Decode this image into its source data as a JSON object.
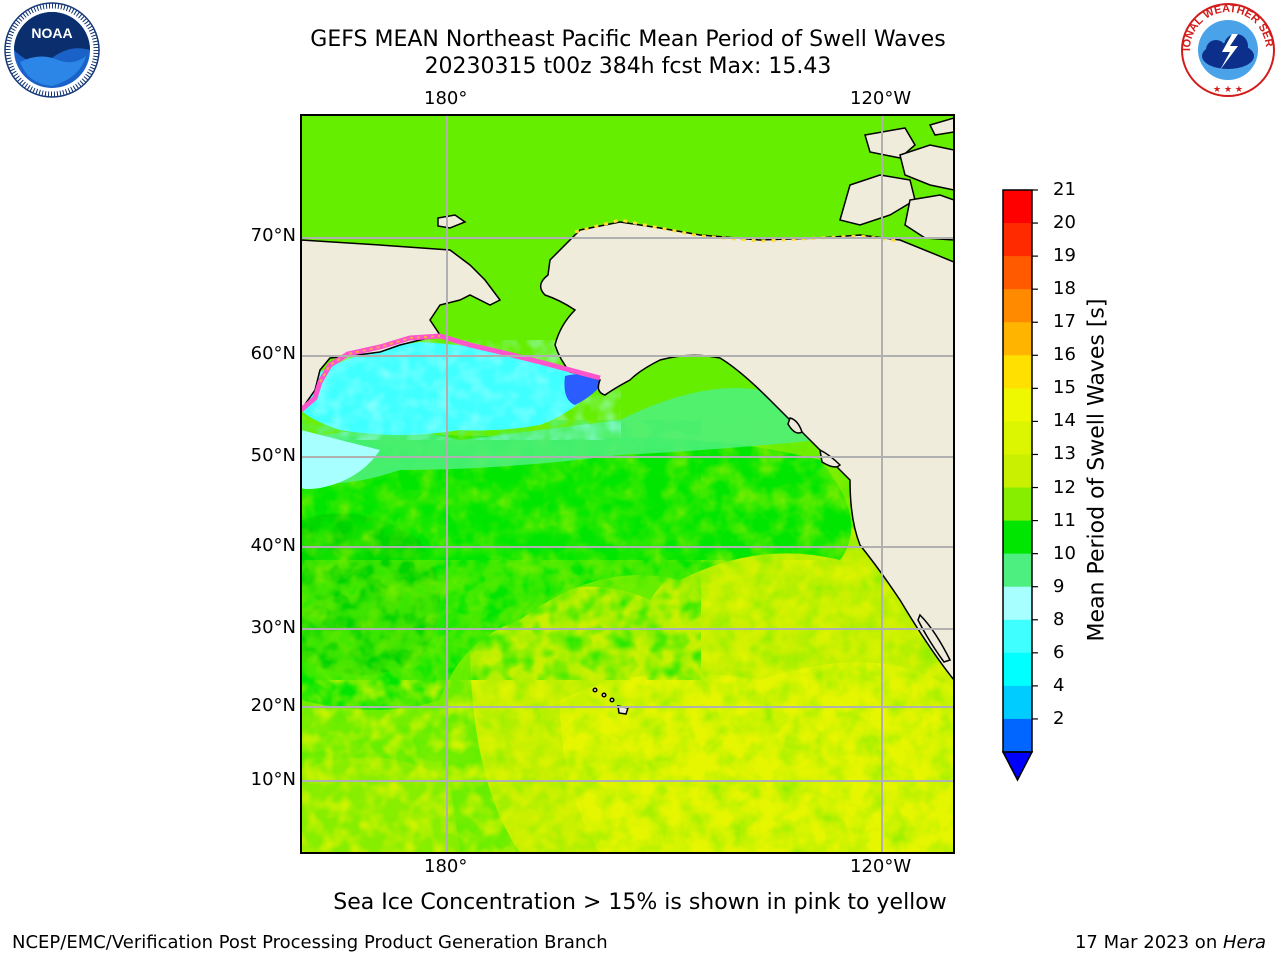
{
  "header": {
    "title_line1": "GEFS MEAN Northeast Pacific Mean Period of Swell Waves",
    "title_line2": "20230315 t00z 384h fcst   Max: 15.43"
  },
  "logos": {
    "left": {
      "name": "noaa-logo",
      "text": "NOAA"
    },
    "right": {
      "name": "nws-logo",
      "text": "NATIONAL WEATHER SERVICE"
    }
  },
  "map": {
    "lon_labels": [
      "180°",
      "120°W"
    ],
    "lat_labels": [
      "70°N",
      "60°N",
      "50°N",
      "40°N",
      "30°N",
      "20°N",
      "10°N"
    ],
    "colors": {
      "land": "#efecdc",
      "grid": "#b0b0b0",
      "ocean_main": "#00e600",
      "ocean_dark": "#00d400",
      "ocean_lime": "#c8f000",
      "ocean_yellow": "#e6f500",
      "ocean_mid": "#66ee00",
      "aqua": "#40ffff",
      "light_cyan": "#a8ffff",
      "mint": "#4df080",
      "ice_pink": "#ff55cc",
      "ice_magenta": "#ff33aa",
      "ice_yellow": "#ffdd33",
      "ice_orange": "#ffaa44",
      "deep_blue": "#2a5cff"
    }
  },
  "colorbar": {
    "label": "Mean Period of Swell Waves [s]",
    "ticks": [
      "21",
      "20",
      "19",
      "18",
      "17",
      "16",
      "15",
      "14",
      "13",
      "12",
      "11",
      "10",
      "9",
      "8",
      "6",
      "4",
      "2"
    ],
    "bands": [
      "#ff0000",
      "#ff2a00",
      "#ff5a00",
      "#ff8a00",
      "#ffb400",
      "#ffe000",
      "#eef800",
      "#dcf500",
      "#c8f000",
      "#88ee00",
      "#00e600",
      "#4df080",
      "#a8ffff",
      "#40ffff",
      "#00ffff",
      "#00ccff",
      "#0066ff"
    ],
    "under_color": "#0000ff"
  },
  "caption": "Sea Ice Concentration > 15% is shown in pink to yellow",
  "footer": {
    "left": "NCEP/EMC/Verification Post Processing Product Generation Branch",
    "right_date": "17 Mar 2023 on ",
    "right_host": "Hera"
  }
}
